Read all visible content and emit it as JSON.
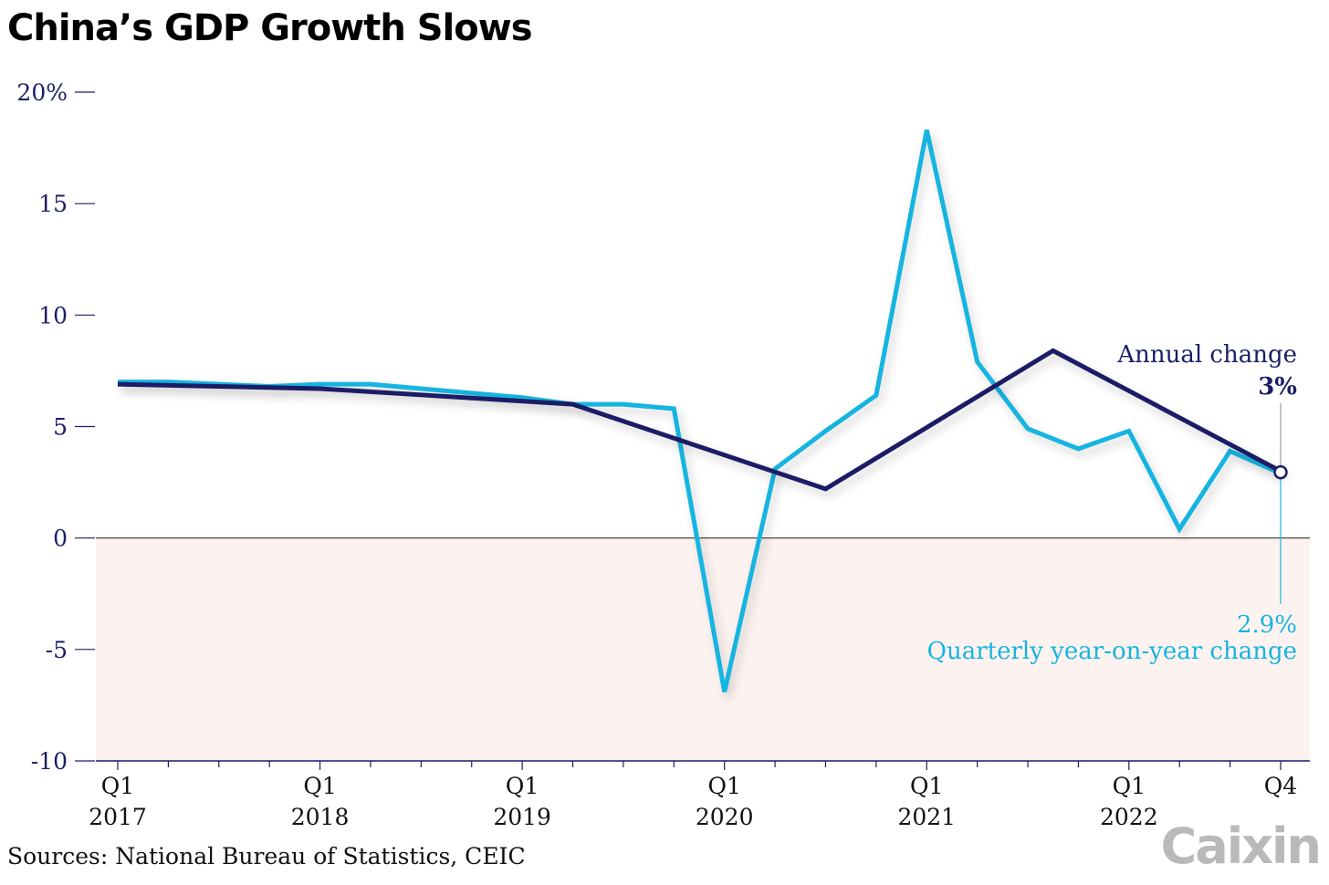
{
  "title": "China’s GDP Growth Slows",
  "source": "Sources: National Bureau of Statistics, CEIC",
  "logo": "Caixin",
  "colors": {
    "annual": "#1b1e66",
    "quarterly": "#18b4e0",
    "negative_band": "#fcf3f0",
    "axis": "#1b1e66"
  },
  "chart_data": {
    "type": "line",
    "title": "China’s GDP Growth Slows",
    "ylim": [
      -10,
      20
    ],
    "y_ticks": [
      {
        "value": 20,
        "label": "20%"
      },
      {
        "value": 15,
        "label": "15"
      },
      {
        "value": 10,
        "label": "10"
      },
      {
        "value": 5,
        "label": "5"
      },
      {
        "value": 0,
        "label": "0"
      },
      {
        "value": -5,
        "label": "-5"
      },
      {
        "value": -10,
        "label": "-10"
      }
    ],
    "x_labels": [
      {
        "q": 0,
        "top": "Q1",
        "bottom": "2017"
      },
      {
        "q": 4,
        "top": "Q1",
        "bottom": "2018"
      },
      {
        "q": 8,
        "top": "Q1",
        "bottom": "2019"
      },
      {
        "q": 12,
        "top": "Q1",
        "bottom": "2020"
      },
      {
        "q": 16,
        "top": "Q1",
        "bottom": "2021"
      },
      {
        "q": 20,
        "top": "Q1",
        "bottom": "2022"
      },
      {
        "q": 23,
        "top": "Q4",
        "bottom": ""
      }
    ],
    "series": [
      {
        "name": "Annual change",
        "points": [
          [
            0,
            6.9
          ],
          [
            4,
            6.7
          ],
          [
            9,
            6.0
          ],
          [
            14,
            2.2
          ],
          [
            18.5,
            8.4
          ],
          [
            23,
            3.0
          ]
        ]
      },
      {
        "name": "Quarterly year-on-year change",
        "points": [
          [
            0,
            7.0
          ],
          [
            1,
            7.0
          ],
          [
            2,
            6.9
          ],
          [
            3,
            6.8
          ],
          [
            4,
            6.9
          ],
          [
            5,
            6.9
          ],
          [
            6,
            6.7
          ],
          [
            7,
            6.5
          ],
          [
            8,
            6.3
          ],
          [
            9,
            6.0
          ],
          [
            10,
            6.0
          ],
          [
            11,
            5.8
          ],
          [
            12,
            -6.9
          ],
          [
            13,
            3.1
          ],
          [
            14,
            4.8
          ],
          [
            15,
            6.4
          ],
          [
            16,
            18.3
          ],
          [
            17,
            7.9
          ],
          [
            18,
            4.9
          ],
          [
            19,
            4.0
          ],
          [
            20,
            4.8
          ],
          [
            21,
            0.4
          ],
          [
            22,
            3.9
          ],
          [
            23,
            2.9
          ]
        ]
      }
    ],
    "annotations": {
      "annual_label": "Annual change",
      "annual_value": "3%",
      "quarterly_value": "2.9%",
      "quarterly_label": "Quarterly year-on-year change"
    }
  }
}
